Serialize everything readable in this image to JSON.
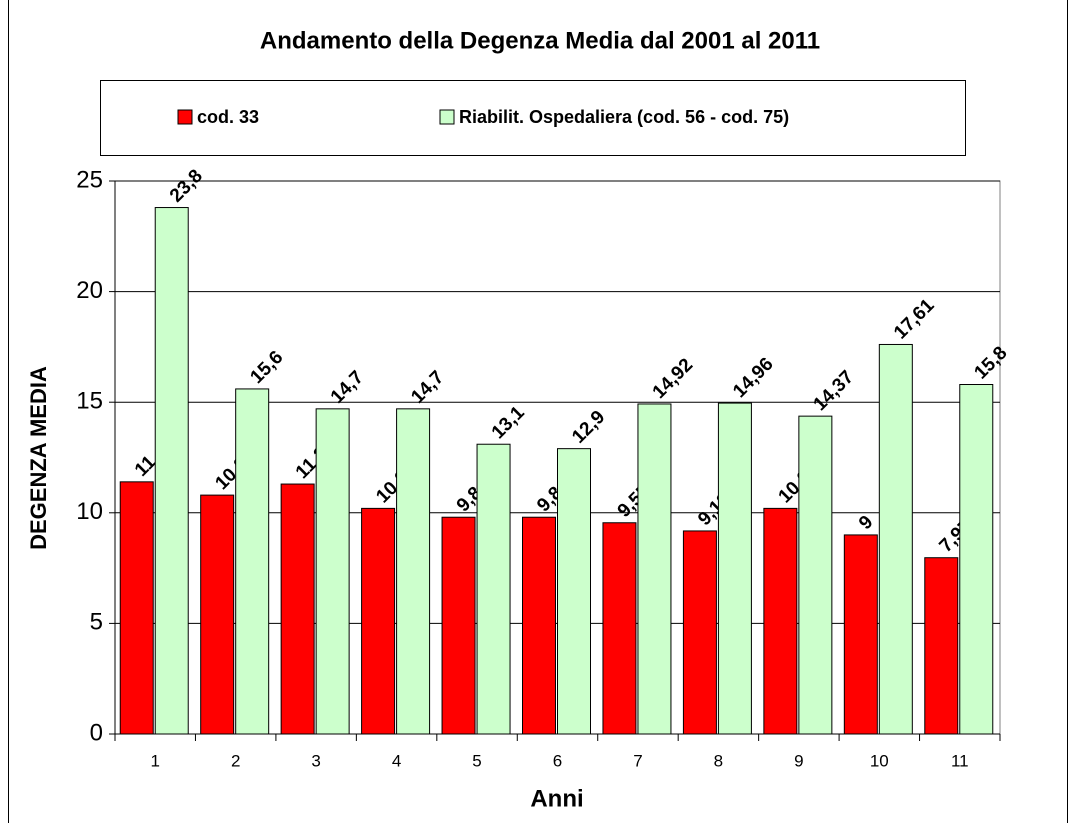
{
  "chart_data": {
    "type": "bar",
    "title": "Andamento della Degenza Media dal 2001 al 2011",
    "y_label": "DEGENZA MEDIA",
    "x_label": "Anni",
    "categories": [
      "1",
      "2",
      "3",
      "4",
      "5",
      "6",
      "7",
      "8",
      "9",
      "10",
      "11"
    ],
    "series": [
      {
        "name": "cod. 33",
        "color": "#ff0000",
        "values": [
          11.4,
          10.8,
          11.3,
          10.2,
          9.8,
          9.8,
          9.55,
          9.18,
          10.2,
          9,
          7.97
        ],
        "value_labels": [
          "11,4",
          "10,8",
          "11,3",
          "10,2",
          "9,8",
          "9,8",
          "9,55",
          "9,18",
          "10,2",
          "9",
          "7,97"
        ]
      },
      {
        "name": "Riabilit. Ospedaliera (cod. 56 - cod. 75)",
        "color": "#ccffcc",
        "values": [
          23.8,
          15.6,
          14.7,
          14.7,
          13.1,
          12.9,
          14.92,
          14.96,
          14.37,
          17.61,
          15.8
        ],
        "value_labels": [
          "23,8",
          "15,6",
          "14,7",
          "14,7",
          "13,1",
          "12,9",
          "14,92",
          "14,96",
          "14,37",
          "17,61",
          "15,8"
        ]
      }
    ],
    "ylim": [
      0,
      25
    ],
    "yticks": [
      0,
      5,
      10,
      15,
      20,
      25
    ],
    "grid": true
  }
}
